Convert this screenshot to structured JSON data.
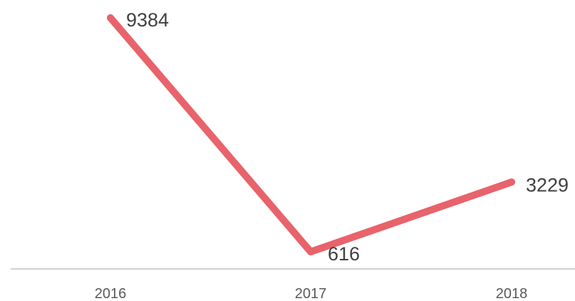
{
  "chart_data": {
    "type": "line",
    "categories": [
      "2016",
      "2017",
      "2018"
    ],
    "series": [
      {
        "values": [
          9384,
          616,
          3229
        ],
        "color": "#e8636b"
      }
    ],
    "data_labels": [
      "9384",
      "616",
      "3229"
    ],
    "title": "",
    "xlabel": "",
    "ylabel": "",
    "y_axis_visible": false,
    "grid": false,
    "legend": "none"
  }
}
